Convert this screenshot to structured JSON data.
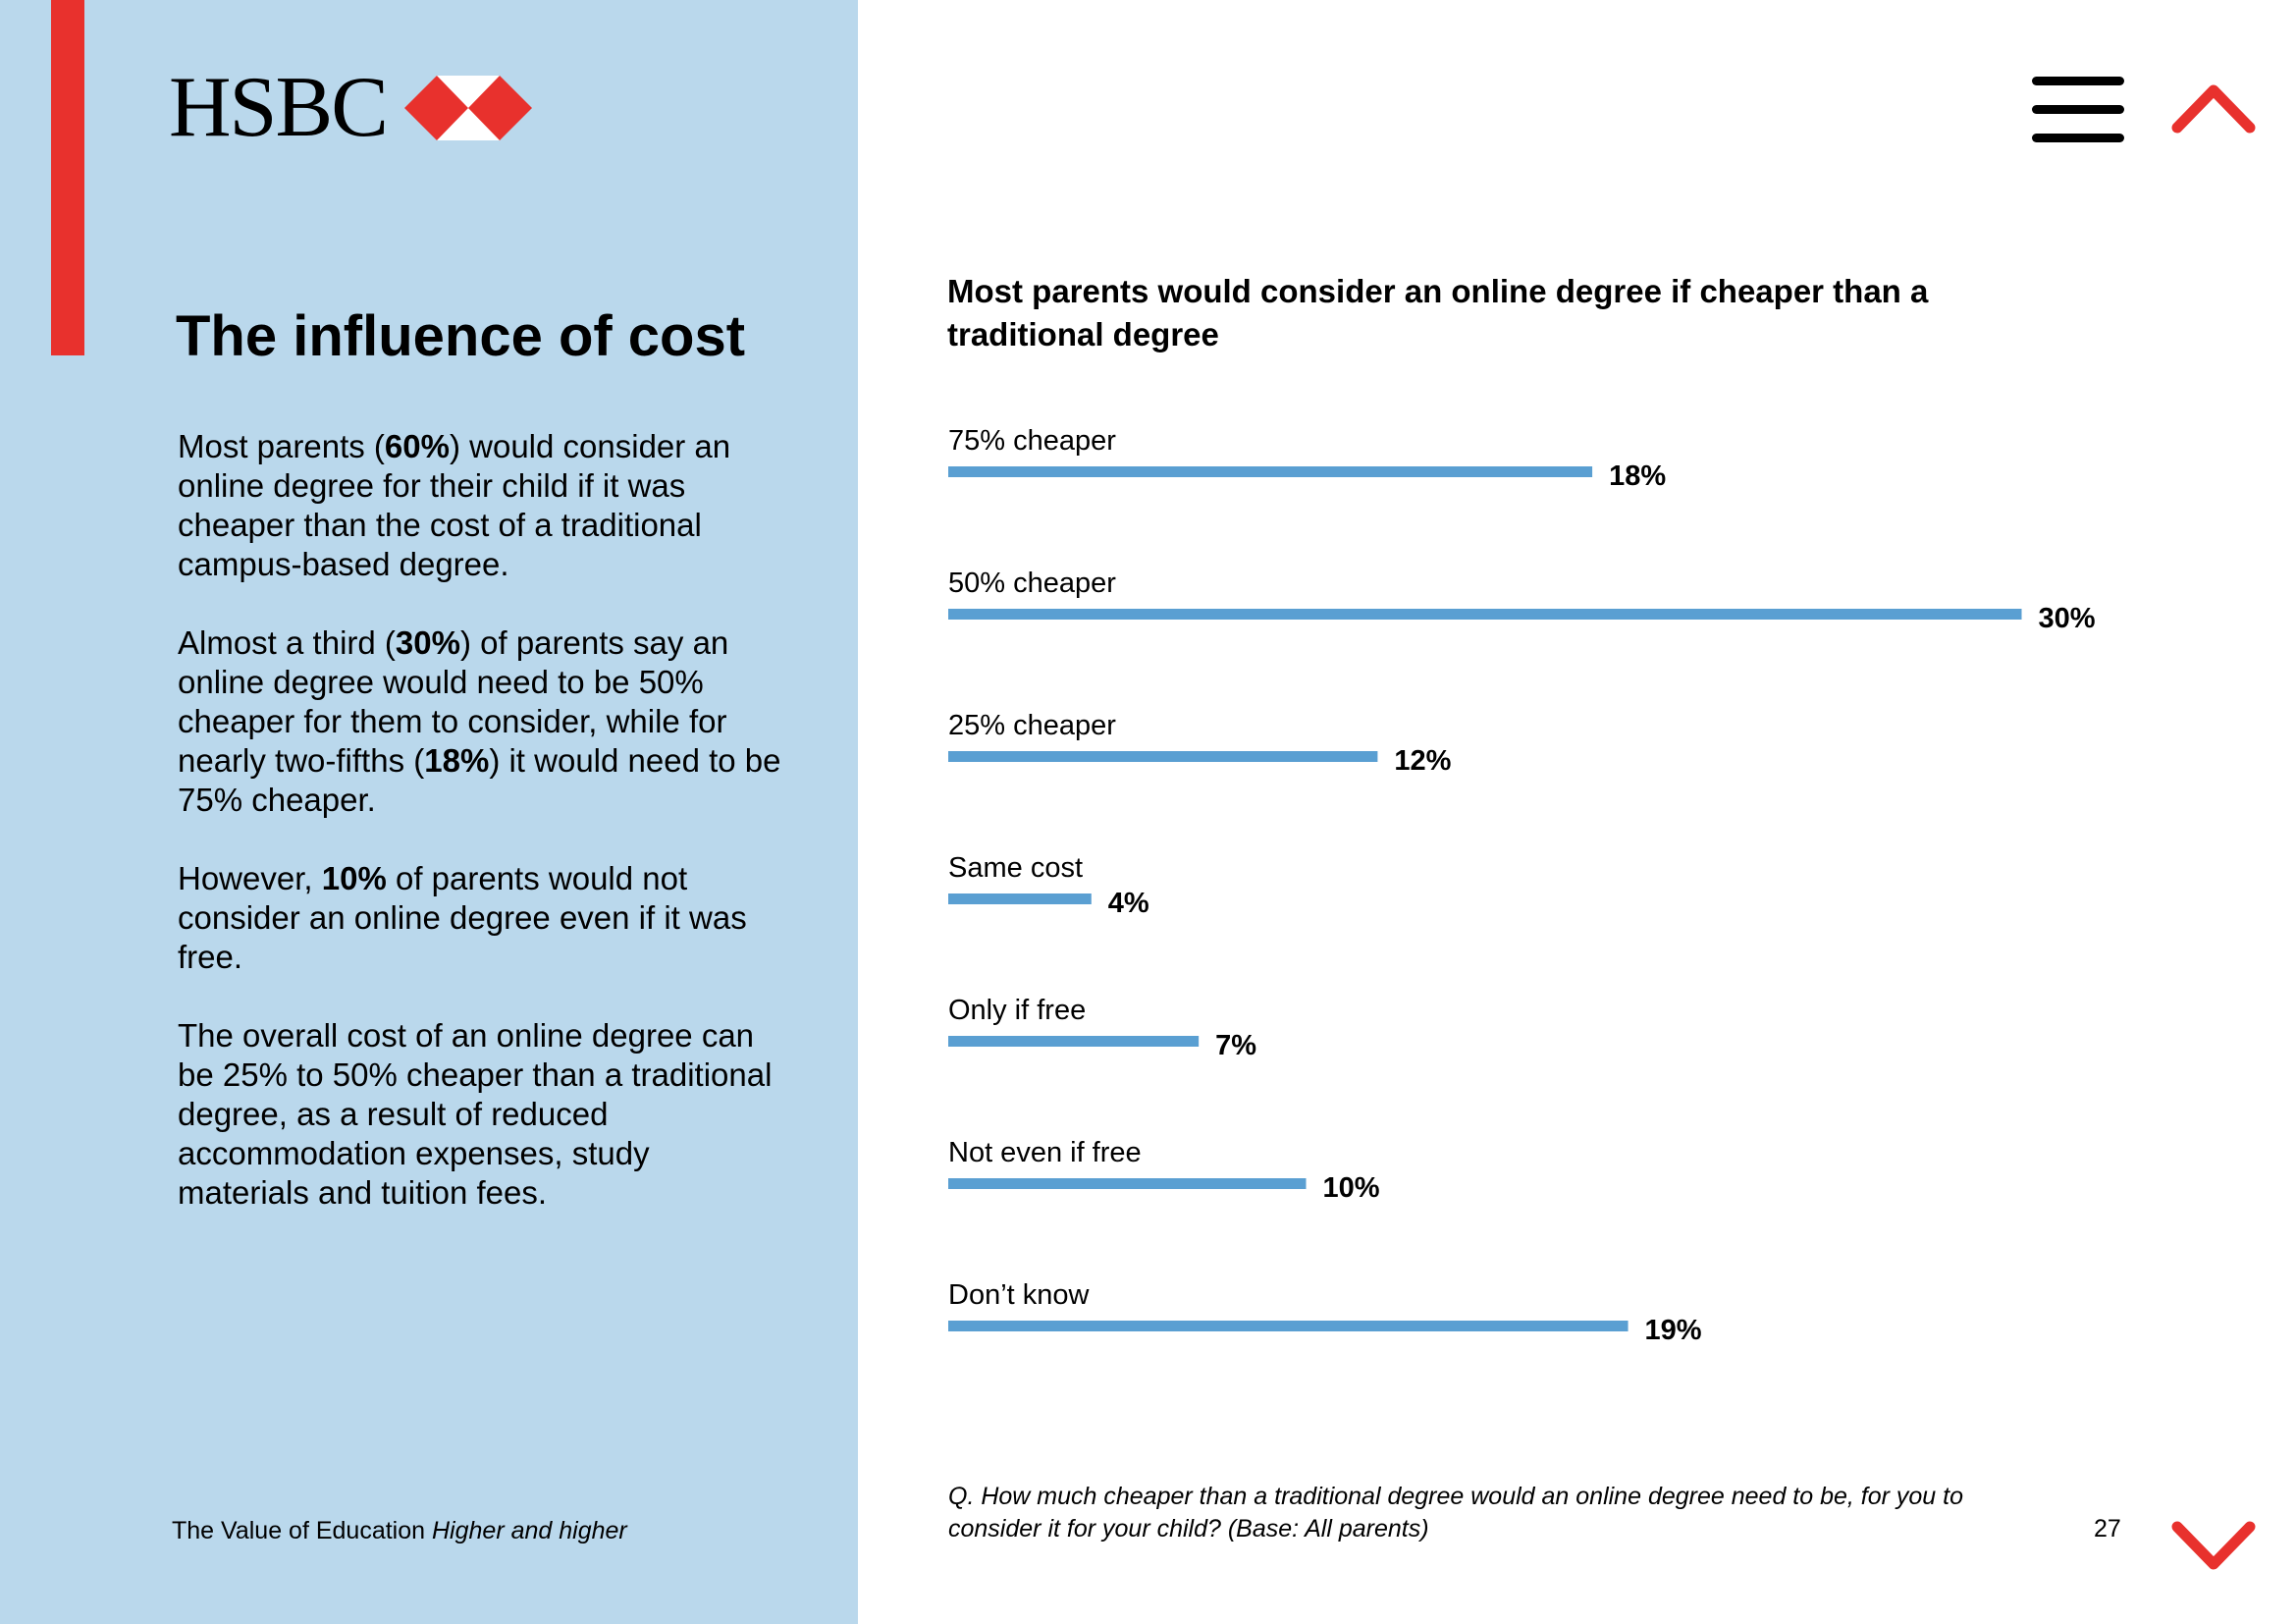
{
  "brand": {
    "name": "HSBC",
    "colors": {
      "red": "#e8312d",
      "panel": "#bad8ec",
      "bar": "#5a9fd2",
      "text": "#000000"
    },
    "logo_icon": "hsbc-hexagon-icon"
  },
  "header": {
    "menu_icon": "hamburger-menu-icon",
    "prev_icon": "chevron-up-icon"
  },
  "left": {
    "title": "The influence of cost",
    "paragraphs": [
      [
        {
          "t": "Most parents ("
        },
        {
          "t": "60%",
          "b": true
        },
        {
          "t": ") would consider an online degree for their child if it was cheaper than the cost of a traditional campus-based degree."
        }
      ],
      [
        {
          "t": "Almost a third ("
        },
        {
          "t": "30%",
          "b": true
        },
        {
          "t": ") of parents say an online degree would need to be 50% cheaper for them to consider, while for nearly two-fifths ("
        },
        {
          "t": "18%",
          "b": true
        },
        {
          "t": ") it would need to be 75% cheaper."
        }
      ],
      [
        {
          "t": "However, "
        },
        {
          "t": "10%",
          "b": true
        },
        {
          "t": " of parents would not consider an online degree even if it was free."
        }
      ],
      [
        {
          "t": "The overall cost of an online degree can be 25% to 50% cheaper than a traditional degree, as a result of reduced accommodation expenses, study materials and tuition fees."
        }
      ]
    ]
  },
  "footer": {
    "publication": "The Value of Education",
    "subtitle": "Higher and higher",
    "footnote": "Q. How much cheaper than a traditional degree would an online degree need to be, for you to consider it for your child? (Base: All parents)",
    "page_number": "27",
    "next_icon": "chevron-down-icon"
  },
  "chart_data": {
    "type": "bar",
    "orientation": "horizontal",
    "title": "Most parents would consider an online degree if cheaper than a traditional degree",
    "categories": [
      "75% cheaper",
      "50% cheaper",
      "25% cheaper",
      "Same cost",
      "Only if free",
      "Not even if free",
      "Don’t know"
    ],
    "values": [
      18,
      30,
      12,
      4,
      7,
      10,
      19
    ],
    "value_labels": [
      "18%",
      "30%",
      "12%",
      "4%",
      "7%",
      "10%",
      "19%"
    ],
    "unit": "%",
    "xlim": [
      0,
      30
    ],
    "xlabel": "",
    "ylabel": "",
    "grid": false,
    "legend": "none"
  }
}
